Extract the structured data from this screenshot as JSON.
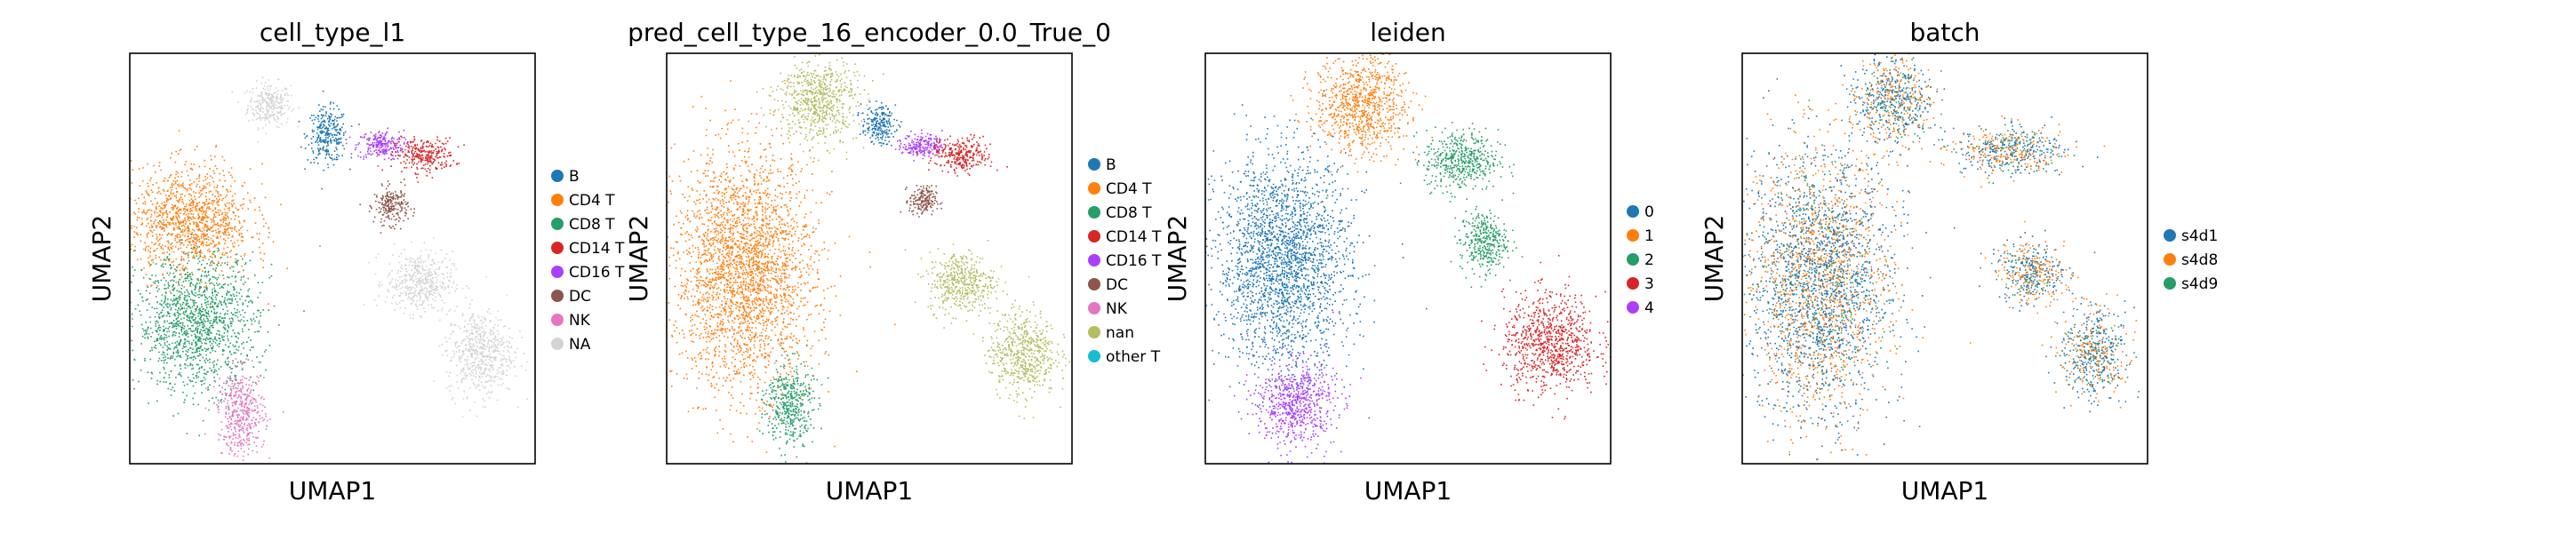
{
  "chart_data": [
    {
      "type": "scatter",
      "title": "cell_type_l1",
      "xlabel": "UMAP1",
      "ylabel": "UMAP2",
      "grid": false,
      "legend_position": "right",
      "legend": [
        {
          "label": "B",
          "color": "#1f77b4"
        },
        {
          "label": "CD4 T",
          "color": "#ff7f0e"
        },
        {
          "label": "CD8 T",
          "color": "#279e68"
        },
        {
          "label": "CD14 T",
          "color": "#d62728"
        },
        {
          "label": "CD16 T",
          "color": "#aa40fc"
        },
        {
          "label": "DC",
          "color": "#8c564b"
        },
        {
          "label": "NK",
          "color": "#e377c2"
        },
        {
          "label": "NA",
          "color": "#d3d3d3"
        }
      ],
      "regions": [
        {
          "label": "NA",
          "x": -0.5,
          "y": 0.75,
          "rx": 0.32,
          "ry": 0.18
        },
        {
          "label": "B",
          "x": 0.55,
          "y": 0.45,
          "rx": 0.3,
          "ry": 0.22
        },
        {
          "label": "CD16 T",
          "x": 1.5,
          "y": 0.35,
          "rx": 0.35,
          "ry": 0.12
        },
        {
          "label": "CD14 T",
          "x": 2.3,
          "y": 0.25,
          "rx": 0.45,
          "ry": 0.14
        },
        {
          "label": "DC",
          "x": 1.7,
          "y": -0.25,
          "rx": 0.25,
          "ry": 0.15
        },
        {
          "label": "NA",
          "x": 2.2,
          "y": -1.0,
          "rx": 0.5,
          "ry": 0.25
        },
        {
          "label": "NA",
          "x": 3.3,
          "y": -1.7,
          "rx": 0.5,
          "ry": 0.35
        },
        {
          "label": "CD4 T",
          "x": -1.9,
          "y": -0.4,
          "rx": 0.9,
          "ry": 0.45
        },
        {
          "label": "CD8 T",
          "x": -1.8,
          "y": -1.4,
          "rx": 0.9,
          "ry": 0.55
        },
        {
          "label": "NK",
          "x": -1.0,
          "y": -2.3,
          "rx": 0.35,
          "ry": 0.35
        }
      ]
    },
    {
      "type": "scatter",
      "title": "pred_cell_type_16_encoder_0.0_True_0",
      "xlabel": "UMAP1",
      "ylabel": "UMAP2",
      "grid": false,
      "legend_position": "right",
      "legend": [
        {
          "label": "B",
          "color": "#1f77b4"
        },
        {
          "label": "CD4 T",
          "color": "#ff7f0e"
        },
        {
          "label": "CD8 T",
          "color": "#279e68"
        },
        {
          "label": "CD14 T",
          "color": "#d62728"
        },
        {
          "label": "CD16 T",
          "color": "#aa40fc"
        },
        {
          "label": "DC",
          "color": "#8c564b"
        },
        {
          "label": "NK",
          "color": "#e377c2"
        },
        {
          "label": "nan",
          "color": "#b5bd61"
        },
        {
          "label": "other T",
          "color": "#17becf"
        }
      ],
      "regions": [
        {
          "label": "nan",
          "x": -0.3,
          "y": 0.8,
          "rx": 0.6,
          "ry": 0.35
        },
        {
          "label": "B",
          "x": 0.8,
          "y": 0.55,
          "rx": 0.25,
          "ry": 0.15
        },
        {
          "label": "CD16 T",
          "x": 1.6,
          "y": 0.35,
          "rx": 0.3,
          "ry": 0.1
        },
        {
          "label": "CD14 T",
          "x": 2.3,
          "y": 0.25,
          "rx": 0.45,
          "ry": 0.14
        },
        {
          "label": "DC",
          "x": 1.6,
          "y": -0.2,
          "rx": 0.2,
          "ry": 0.12
        },
        {
          "label": "nan",
          "x": 2.3,
          "y": -1.0,
          "rx": 0.5,
          "ry": 0.25
        },
        {
          "label": "nan",
          "x": 3.4,
          "y": -1.7,
          "rx": 0.5,
          "ry": 0.35
        },
        {
          "label": "CD4 T",
          "x": -1.6,
          "y": -0.9,
          "rx": 1.05,
          "ry": 0.95
        },
        {
          "label": "CD8 T",
          "x": -0.8,
          "y": -2.2,
          "rx": 0.35,
          "ry": 0.35
        }
      ]
    },
    {
      "type": "scatter",
      "title": "leiden",
      "xlabel": "UMAP1",
      "ylabel": "UMAP2",
      "grid": false,
      "legend_position": "right",
      "legend": [
        {
          "label": "0",
          "color": "#1f77b4"
        },
        {
          "label": "1",
          "color": "#ff7f0e"
        },
        {
          "label": "2",
          "color": "#279e68"
        },
        {
          "label": "3",
          "color": "#d62728"
        },
        {
          "label": "4",
          "color": "#aa40fc"
        }
      ],
      "regions": [
        {
          "label": "1",
          "x": -0.2,
          "y": 0.75,
          "rx": 0.7,
          "ry": 0.4
        },
        {
          "label": "2",
          "x": 1.6,
          "y": 0.2,
          "rx": 0.55,
          "ry": 0.25
        },
        {
          "label": "2",
          "x": 2.0,
          "y": -0.6,
          "rx": 0.35,
          "ry": 0.25
        },
        {
          "label": "3",
          "x": 3.2,
          "y": -1.6,
          "rx": 0.7,
          "ry": 0.4
        },
        {
          "label": "0",
          "x": -1.6,
          "y": -0.8,
          "rx": 1.0,
          "ry": 0.85
        },
        {
          "label": "4",
          "x": -1.4,
          "y": -2.2,
          "rx": 0.6,
          "ry": 0.35
        }
      ]
    },
    {
      "type": "scatter",
      "title": "batch",
      "xlabel": "UMAP1",
      "ylabel": "UMAP2",
      "grid": false,
      "legend_position": "right",
      "legend": [
        {
          "label": "s4d1",
          "color": "#1f77b4"
        },
        {
          "label": "s4d8",
          "color": "#ff7f0e"
        },
        {
          "label": "s4d9",
          "color": "#279e68"
        }
      ],
      "regions": [
        {
          "label": "mixed",
          "x": -0.3,
          "y": 0.8,
          "rx": 0.6,
          "ry": 0.35
        },
        {
          "label": "mixed",
          "x": 1.8,
          "y": 0.3,
          "rx": 0.8,
          "ry": 0.2
        },
        {
          "label": "mixed",
          "x": 2.2,
          "y": -0.9,
          "rx": 0.5,
          "ry": 0.25
        },
        {
          "label": "mixed",
          "x": 3.3,
          "y": -1.7,
          "rx": 0.5,
          "ry": 0.35
        },
        {
          "label": "mixed",
          "x": -1.6,
          "y": -1.0,
          "rx": 1.05,
          "ry": 1.1
        }
      ]
    }
  ]
}
